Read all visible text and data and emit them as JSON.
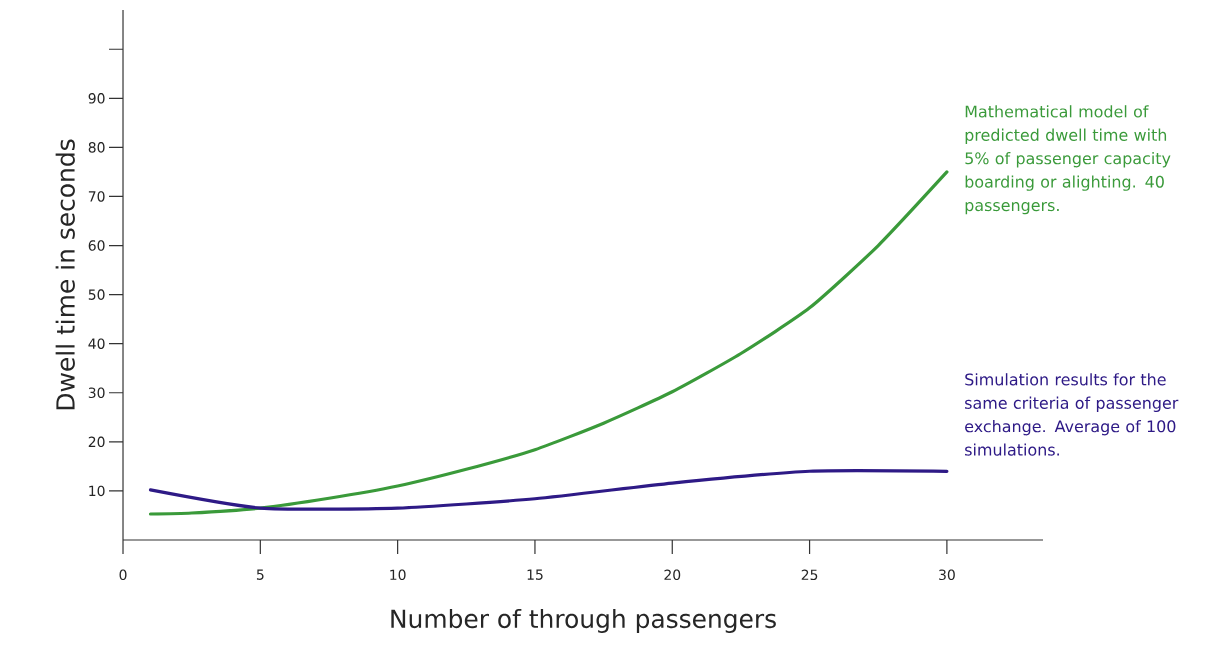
{
  "chart_data": {
    "type": "line",
    "xlabel": "Number of through passengers",
    "ylabel": "Dwell time in seconds",
    "xlim": [
      0,
      33.5
    ],
    "ylim": [
      0,
      108
    ],
    "xticks": [
      0,
      5,
      10,
      15,
      20,
      25,
      30
    ],
    "yticks": [
      10,
      20,
      30,
      40,
      50,
      60,
      70,
      80,
      90,
      {
        "value": 100,
        "label": null
      }
    ],
    "series": [
      {
        "color": "#3a9a3a",
        "x": [
          1,
          2.5,
          5,
          7.5,
          10,
          12.5,
          15,
          17.5,
          20,
          22.5,
          25,
          27.5,
          30
        ],
        "values": [
          5.3,
          5.5,
          6.5,
          8.5,
          11,
          14.4,
          18.4,
          23.8,
          30.2,
          38,
          47.3,
          60,
          75
        ]
      },
      {
        "color": "#2e1a86",
        "x": [
          1,
          5,
          10,
          15,
          20,
          25,
          30
        ],
        "values": [
          10.2,
          6.5,
          6.5,
          8.4,
          11.6,
          14,
          14
        ]
      }
    ],
    "annotations": [
      "Mathematical model of predicted dwell time with 5% of passenger capacity boarding or alighting. 40 passengers.",
      "Simulation results for the same criteria of passenger exchange. Average of 100 simulations."
    ],
    "grid": false,
    "marker": "none",
    "line_style": "solid"
  }
}
